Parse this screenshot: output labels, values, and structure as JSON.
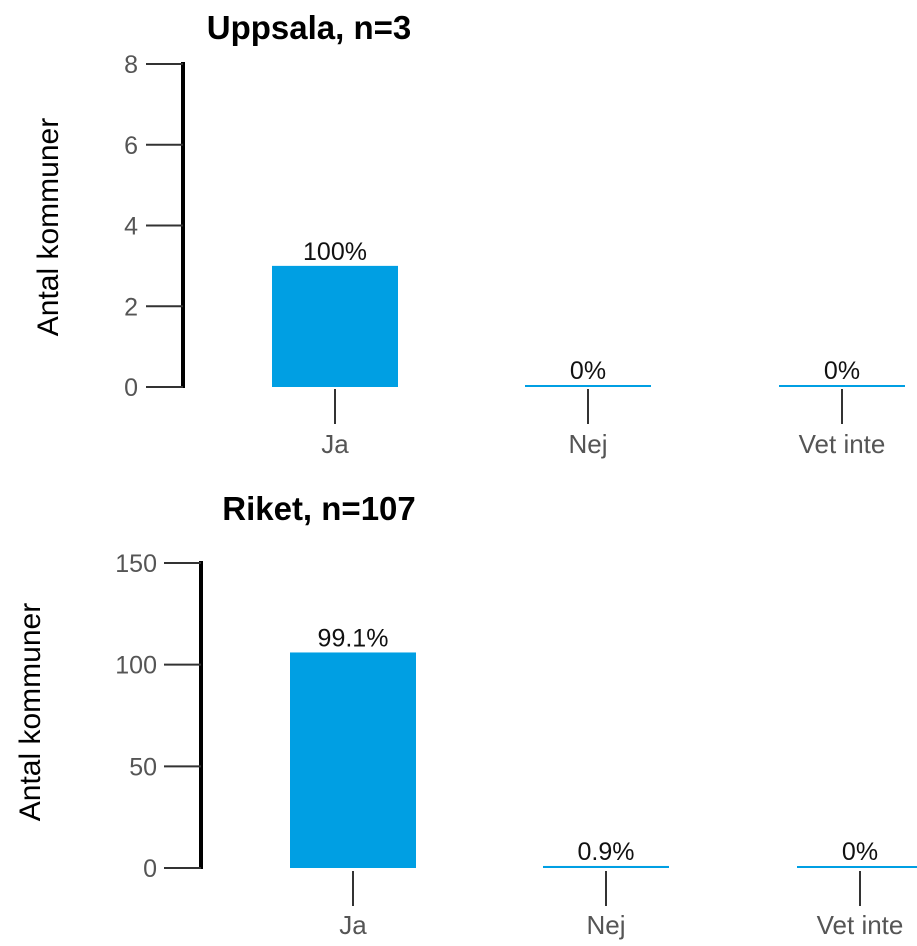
{
  "chart_data": [
    {
      "type": "bar",
      "title": "Uppsala, n=3",
      "ylabel": "Antal kommuner",
      "categories": [
        "Ja",
        "Nej",
        "Vet inte"
      ],
      "values": [
        3,
        0,
        0
      ],
      "labels": [
        "100%",
        "0%",
        "0%"
      ],
      "ylim": [
        0,
        8
      ],
      "yticks": [
        "0",
        "2",
        "4",
        "6",
        "8"
      ],
      "grid": false,
      "bar_color": "#009fe3"
    },
    {
      "type": "bar",
      "title": "Riket, n=107",
      "ylabel": "Antal kommuner",
      "categories": [
        "Ja",
        "Nej",
        "Vet inte"
      ],
      "values": [
        106,
        1,
        0
      ],
      "labels": [
        "99.1%",
        "0.9%",
        "0%"
      ],
      "ylim": [
        0,
        150
      ],
      "yticks": [
        "0",
        "50",
        "100",
        "150"
      ],
      "grid": false,
      "bar_color": "#009fe3"
    }
  ]
}
